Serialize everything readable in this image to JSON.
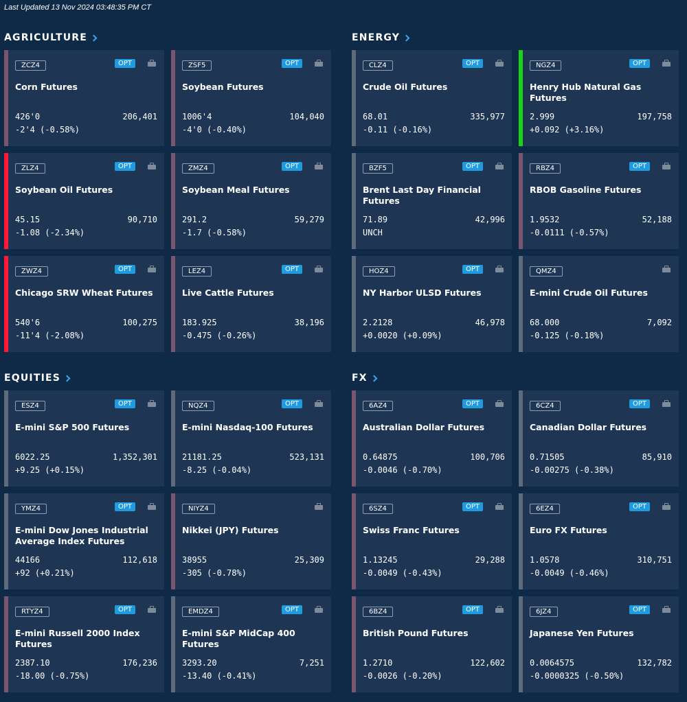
{
  "last_updated": "Last Updated 13 Nov 2024 03:48:35 PM CT",
  "colors": {
    "up": "#1ad315",
    "down": "#ff1a38",
    "accent": "#1f9be0",
    "background": "#0e2a47",
    "card": "#1e3554"
  },
  "sections": [
    {
      "title": "AGRICULTURE",
      "cards": [
        {
          "symbol": "ZCZ4",
          "opt": "OPT",
          "name": "Corn Futures",
          "price": "426'0",
          "volume": "206,401",
          "change": "-2'4 (-0.58%)",
          "trend": "dim"
        },
        {
          "symbol": "ZSF5",
          "opt": "OPT",
          "name": "Soybean Futures",
          "price": "1006'4",
          "volume": "104,040",
          "change": "-4'0 (-0.40%)",
          "trend": "dim"
        },
        {
          "symbol": "ZLZ4",
          "opt": "OPT",
          "name": "Soybean Oil Futures",
          "price": "45.15",
          "volume": "90,710",
          "change": "-1.08 (-2.34%)",
          "trend": "down"
        },
        {
          "symbol": "ZMZ4",
          "opt": "OPT",
          "name": "Soybean Meal Futures",
          "price": "291.2",
          "volume": "59,279",
          "change": "-1.7 (-0.58%)",
          "trend": "dim"
        },
        {
          "symbol": "ZWZ4",
          "opt": "OPT",
          "name": "Chicago SRW Wheat Futures",
          "price": "540'6",
          "volume": "100,275",
          "change": "-11'4 (-2.08%)",
          "trend": "down"
        },
        {
          "symbol": "LEZ4",
          "opt": "OPT",
          "name": "Live Cattle Futures",
          "price": "183.925",
          "volume": "38,196",
          "change": "-0.475 (-0.26%)",
          "trend": "dim"
        }
      ]
    },
    {
      "title": "ENERGY",
      "cards": [
        {
          "symbol": "CLZ4",
          "opt": "OPT",
          "name": "Crude Oil Futures",
          "price": "68.01",
          "volume": "335,977",
          "change": "-0.11 (-0.16%)",
          "trend": "flat"
        },
        {
          "symbol": "NGZ4",
          "opt": "OPT",
          "name": "Henry Hub Natural Gas Futures",
          "price": "2.999",
          "volume": "197,758",
          "change": "+0.092 (+3.16%)",
          "trend": "up"
        },
        {
          "symbol": "BZF5",
          "opt": "OPT",
          "name": "Brent Last Day Financial Futures",
          "price": "71.89",
          "volume": "42,996",
          "change": "UNCH",
          "trend": "flat"
        },
        {
          "symbol": "RBZ4",
          "opt": "OPT",
          "name": "RBOB Gasoline Futures",
          "price": "1.9532",
          "volume": "52,188",
          "change": "-0.0111 (-0.57%)",
          "trend": "dim"
        },
        {
          "symbol": "HOZ4",
          "opt": "OPT",
          "name": "NY Harbor ULSD Futures",
          "price": "2.2128",
          "volume": "46,978",
          "change": "+0.0020 (+0.09%)",
          "trend": "flat"
        },
        {
          "symbol": "QMZ4",
          "opt": "",
          "name": "E-mini Crude Oil Futures",
          "price": "68.000",
          "volume": "7,092",
          "change": "-0.125 (-0.18%)",
          "trend": "flat"
        }
      ]
    },
    {
      "title": "EQUITIES",
      "cards": [
        {
          "symbol": "ESZ4",
          "opt": "OPT",
          "name": "E-mini S&P 500 Futures",
          "price": "6022.25",
          "volume": "1,352,301",
          "change": "+9.25 (+0.15%)",
          "trend": "flat"
        },
        {
          "symbol": "NQZ4",
          "opt": "OPT",
          "name": "E-mini Nasdaq-100 Futures",
          "price": "21181.25",
          "volume": "523,131",
          "change": "-8.25 (-0.04%)",
          "trend": "flat"
        },
        {
          "symbol": "YMZ4",
          "opt": "OPT",
          "name": "E-mini Dow Jones Industrial Average Index Futures",
          "price": "44166",
          "volume": "112,618",
          "change": "+92 (+0.21%)",
          "trend": "flat"
        },
        {
          "symbol": "NIYZ4",
          "opt": "",
          "name": "Nikkei (JPY) Futures",
          "price": "38955",
          "volume": "25,309",
          "change": "-305 (-0.78%)",
          "trend": "dim"
        },
        {
          "symbol": "RTYZ4",
          "opt": "OPT",
          "name": "E-mini Russell 2000 Index Futures",
          "price": "2387.10",
          "volume": "176,236",
          "change": "-18.00 (-0.75%)",
          "trend": "dim"
        },
        {
          "symbol": "EMDZ4",
          "opt": "OPT",
          "name": "E-mini S&P MidCap 400 Futures",
          "price": "3293.20",
          "volume": "7,251",
          "change": "-13.40 (-0.41%)",
          "trend": "flat"
        }
      ]
    },
    {
      "title": "FX",
      "cards": [
        {
          "symbol": "6AZ4",
          "opt": "OPT",
          "name": "Australian Dollar Futures",
          "price": "0.64875",
          "volume": "100,706",
          "change": "-0.0046 (-0.70%)",
          "trend": "dim"
        },
        {
          "symbol": "6CZ4",
          "opt": "OPT",
          "name": "Canadian Dollar Futures",
          "price": "0.71505",
          "volume": "85,910",
          "change": "-0.00275 (-0.38%)",
          "trend": "flat"
        },
        {
          "symbol": "6SZ4",
          "opt": "OPT",
          "name": "Swiss Franc Futures",
          "price": "1.13245",
          "volume": "29,288",
          "change": "-0.0049 (-0.43%)",
          "trend": "dim"
        },
        {
          "symbol": "6EZ4",
          "opt": "OPT",
          "name": "Euro FX Futures",
          "price": "1.0578",
          "volume": "310,751",
          "change": "-0.0049 (-0.46%)",
          "trend": "flat"
        },
        {
          "symbol": "6BZ4",
          "opt": "OPT",
          "name": "British Pound Futures",
          "price": "1.2710",
          "volume": "122,602",
          "change": "-0.0026 (-0.20%)",
          "trend": "dim"
        },
        {
          "symbol": "6JZ4",
          "opt": "OPT",
          "name": "Japanese Yen Futures",
          "price": "0.0064575",
          "volume": "132,782",
          "change": "-0.0000325 (-0.50%)",
          "trend": "flat"
        }
      ]
    }
  ]
}
